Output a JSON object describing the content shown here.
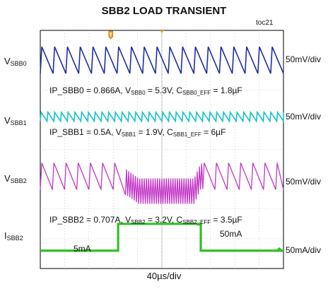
{
  "chart_data": {
    "type": "line",
    "title": "SBB2 LOAD TRANSIENT",
    "tag": "toc21",
    "time_scale": "40µs/div",
    "divisions": {
      "x": 10,
      "y": 8
    },
    "grid": true,
    "load_step": {
      "start_div": 3.2,
      "end_div": 6.6
    },
    "trigger_marker": "T",
    "channels": [
      {
        "name": "V",
        "sub": "SBB0",
        "scale": "50mV/div",
        "color": "#1f2fa6",
        "waveform": "sawtooth",
        "ripple_div": 0.9,
        "cycles": 19,
        "note": {
          "parts": [
            {
              "t": "IP_SBB0 = 0.866A, V"
            },
            {
              "t": "SBB0",
              "sub": true
            },
            {
              "t": " = 5.3V, C"
            },
            {
              "t": "SBB0_EFF",
              "sub": true
            },
            {
              "t": " = 1.8µF"
            }
          ]
        }
      },
      {
        "name": "V",
        "sub": "SBB1",
        "scale": "50mV/div",
        "color": "#16c2c8",
        "waveform": "sawtooth",
        "ripple_div": 0.3,
        "cycles": 36,
        "note": {
          "parts": [
            {
              "t": "IP_SBB1 = 0.5A, V"
            },
            {
              "t": "SBB1",
              "sub": true
            },
            {
              "t": " = 1.9V, C"
            },
            {
              "t": "SBB1_EFF",
              "sub": true
            },
            {
              "t": " = 6µF"
            }
          ]
        }
      },
      {
        "name": "V",
        "sub": "SBB2",
        "scale": "50mV/div",
        "color": "#c236c6",
        "waveform": "sawtooth_with_droop",
        "ripple_div": 0.9,
        "cycles": 20,
        "loaded_cycles": 110,
        "droop_div": 0.5,
        "note": {
          "parts": [
            {
              "t": "IP_SBB2 = 0.707A, V"
            },
            {
              "t": "SBB2",
              "sub": true
            },
            {
              "t": " = 3.2V, C"
            },
            {
              "t": "SBB2_EFF",
              "sub": true
            },
            {
              "t": " = 3.5µF"
            }
          ]
        }
      },
      {
        "name": "I",
        "sub": "SBB2",
        "scale": "50mA/div",
        "color": "#2fbf26",
        "waveform": "load_step",
        "values_mA": {
          "low": 5,
          "high": 50
        },
        "levels": [
          "5mA",
          "50mA"
        ]
      }
    ]
  }
}
